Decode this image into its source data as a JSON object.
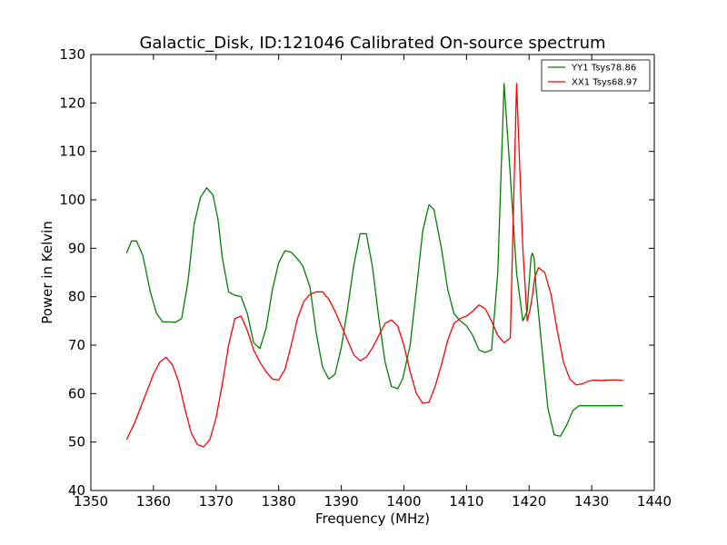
{
  "chart_data": {
    "type": "line",
    "title": "Galactic_Disk, ID:121046 Calibrated On-source spectrum",
    "xlabel": "Frequency (MHz)",
    "ylabel": "Power in Kelvin",
    "xlim": [
      1350,
      1440
    ],
    "ylim": [
      40,
      130
    ],
    "xticks": [
      1350,
      1360,
      1370,
      1380,
      1390,
      1400,
      1410,
      1420,
      1430,
      1440
    ],
    "yticks": [
      40,
      50,
      60,
      70,
      80,
      90,
      100,
      110,
      120,
      130
    ],
    "grid": false,
    "legend_position": "top-right",
    "series": [
      {
        "name": "YY1 Tsys78.86",
        "color": "#008000",
        "x": [
          1355.7,
          1356.5,
          1357.3,
          1358.3,
          1359.5,
          1360.5,
          1361.5,
          1362.5,
          1363.5,
          1364.5,
          1365.5,
          1366.5,
          1367.5,
          1368.5,
          1369.5,
          1370.3,
          1371.0,
          1372.0,
          1373.0,
          1374.0,
          1375.0,
          1376.0,
          1377.0,
          1378.0,
          1379.0,
          1380.0,
          1381.0,
          1382.0,
          1383.0,
          1383.8,
          1385.0,
          1386.0,
          1387.0,
          1388.0,
          1389.0,
          1390.0,
          1391.0,
          1392.0,
          1393.0,
          1394.0,
          1395.0,
          1396.0,
          1397.0,
          1398.0,
          1399.0,
          1399.8,
          1401.0,
          1402.0,
          1403.0,
          1404.0,
          1404.8,
          1406.0,
          1407.0,
          1408.0,
          1409.0,
          1410.0,
          1411.0,
          1412.0,
          1413.0,
          1414.0,
          1415.0,
          1416.0,
          1417.0,
          1418.0,
          1419.0,
          1419.7,
          1419.9,
          1420.1,
          1420.3,
          1420.5,
          1420.8,
          1421.1,
          1422.0,
          1423.0,
          1424.0,
          1425.0,
          1426.0,
          1427.0,
          1428.0,
          1429.0,
          1430.0,
          1431.0,
          1432.0,
          1433.0,
          1434.0,
          1435.0
        ],
        "values": [
          89.0,
          91.5,
          91.5,
          88.5,
          81.0,
          76.5,
          74.8,
          74.8,
          74.7,
          75.5,
          83.0,
          95.0,
          100.5,
          102.5,
          101.0,
          96.0,
          88.0,
          81.0,
          80.3,
          80.0,
          76.5,
          70.5,
          69.3,
          73.5,
          81.5,
          87.0,
          89.5,
          89.2,
          87.8,
          86.5,
          82.0,
          72.5,
          65.5,
          63.0,
          64.0,
          69.5,
          77.5,
          86.5,
          93.0,
          93.0,
          86.0,
          75.5,
          66.5,
          61.5,
          61.0,
          63.0,
          70.0,
          81.5,
          93.5,
          99.0,
          98.0,
          90.0,
          81.5,
          76.5,
          75.0,
          74.0,
          72.0,
          69.0,
          68.5,
          69.0,
          85.0,
          124.0,
          105.0,
          85.0,
          75.0,
          77.0,
          81.0,
          84.5,
          88.0,
          89.0,
          88.0,
          82.0,
          70.0,
          57.0,
          51.5,
          51.2,
          53.5,
          56.5,
          57.5,
          57.5,
          57.5,
          57.5,
          57.5,
          57.5,
          57.5,
          57.5
        ]
      },
      {
        "name": "XX1 Tsys68.97",
        "color": "#ff0000",
        "x": [
          1355.7,
          1357.0,
          1358.5,
          1360.0,
          1361.0,
          1362.0,
          1363.0,
          1364.0,
          1365.0,
          1366.0,
          1367.0,
          1368.0,
          1369.0,
          1370.0,
          1371.0,
          1372.0,
          1373.0,
          1374.0,
          1375.0,
          1376.0,
          1377.0,
          1378.0,
          1379.0,
          1380.0,
          1381.0,
          1382.0,
          1383.0,
          1384.0,
          1385.0,
          1386.0,
          1387.0,
          1388.0,
          1389.0,
          1390.0,
          1391.0,
          1392.0,
          1393.0,
          1394.0,
          1395.0,
          1396.0,
          1397.0,
          1398.0,
          1399.0,
          1400.0,
          1401.0,
          1402.0,
          1403.0,
          1404.0,
          1405.0,
          1406.0,
          1407.0,
          1408.0,
          1409.0,
          1410.0,
          1411.0,
          1412.0,
          1413.0,
          1414.0,
          1415.0,
          1416.0,
          1417.0,
          1418.0,
          1419.0,
          1419.7,
          1420.1,
          1420.5,
          1420.9,
          1421.5,
          1422.5,
          1423.5,
          1424.5,
          1425.5,
          1426.5,
          1427.5,
          1428.5,
          1429.5,
          1430.5,
          1431.5,
          1432.5,
          1433.5,
          1434.5,
          1435.0
        ],
        "values": [
          50.5,
          54.0,
          59.0,
          64.0,
          66.5,
          67.5,
          66.0,
          62.5,
          57.0,
          52.0,
          49.5,
          49.0,
          50.5,
          55.0,
          62.0,
          70.0,
          75.5,
          76.0,
          73.0,
          69.0,
          66.5,
          64.5,
          63.0,
          62.8,
          65.0,
          70.0,
          75.5,
          79.0,
          80.5,
          81.0,
          81.0,
          79.5,
          77.0,
          74.0,
          71.0,
          68.0,
          66.8,
          67.5,
          69.5,
          72.0,
          74.5,
          75.2,
          74.0,
          70.0,
          64.5,
          60.0,
          58.0,
          58.2,
          61.5,
          66.0,
          71.0,
          74.5,
          75.5,
          76.0,
          77.0,
          78.3,
          77.5,
          75.0,
          72.0,
          70.5,
          71.5,
          124.0,
          90.0,
          75.0,
          77.0,
          80.0,
          84.0,
          86.0,
          85.0,
          80.5,
          73.0,
          66.5,
          63.0,
          61.8,
          62.0,
          62.6,
          62.8,
          62.7,
          62.8,
          62.8,
          62.8,
          62.7
        ]
      }
    ]
  }
}
